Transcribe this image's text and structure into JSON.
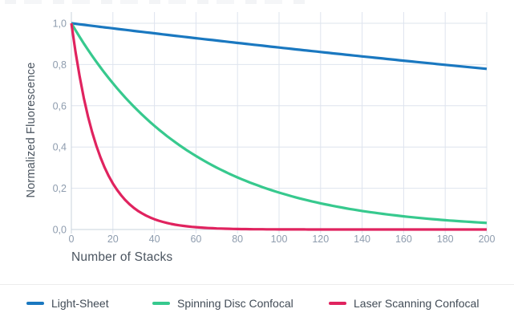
{
  "background_color": "#ffffff",
  "chart_data": {
    "type": "line",
    "title": "",
    "xlabel": "Number of Stacks",
    "ylabel": "Normalized Fluorescence",
    "xlim": [
      0,
      200
    ],
    "ylim": [
      0,
      1.05
    ],
    "grid": true,
    "legend_position": "bottom",
    "decimal_separator": ",",
    "x_ticks": [
      0,
      20,
      40,
      60,
      80,
      100,
      120,
      140,
      160,
      180,
      200
    ],
    "x_tick_labels": [
      "0",
      "20",
      "40",
      "60",
      "80",
      "100",
      "120",
      "140",
      "160",
      "180",
      "200"
    ],
    "y_ticks": [
      1.0,
      0.8,
      0.6,
      0.4,
      0.2,
      0.0
    ],
    "y_tick_labels": [
      "1,0",
      "0,8",
      "0,6",
      "0,4",
      "0,2",
      "0,0"
    ],
    "x": [
      0,
      10,
      20,
      30,
      40,
      50,
      60,
      70,
      80,
      90,
      100,
      110,
      120,
      130,
      140,
      150,
      160,
      170,
      180,
      190,
      200
    ],
    "series": [
      {
        "name": "Light-Sheet",
        "color": "#1a78c0",
        "model": "exponential_decay",
        "decay_per_stack": 0.00125,
        "values": [
          1.0,
          0.988,
          0.975,
          0.963,
          0.951,
          0.939,
          0.928,
          0.916,
          0.905,
          0.894,
          0.882,
          0.872,
          0.861,
          0.85,
          0.839,
          0.829,
          0.819,
          0.808,
          0.798,
          0.789,
          0.779
        ]
      },
      {
        "name": "Spinning Disc Confocal",
        "color": "#37c98e",
        "model": "exponential_decay",
        "decay_per_stack": 0.0172,
        "values": [
          1.0,
          0.842,
          0.709,
          0.597,
          0.503,
          0.423,
          0.356,
          0.3,
          0.253,
          0.213,
          0.179,
          0.151,
          0.127,
          0.107,
          0.09,
          0.076,
          0.064,
          0.054,
          0.045,
          0.038,
          0.032
        ]
      },
      {
        "name": "Laser Scanning Confocal",
        "color": "#e0235f",
        "model": "exponential_decay",
        "decay_per_stack": 0.075,
        "values": [
          1.0,
          0.472,
          0.223,
          0.105,
          0.05,
          0.024,
          0.011,
          0.005,
          0.002,
          0.001,
          0.001,
          0.0,
          0.0,
          0.0,
          0.0,
          0.0,
          0.0,
          0.0,
          0.0,
          0.0,
          0.0
        ]
      }
    ]
  },
  "legend": {
    "items": [
      {
        "label": "Light-Sheet",
        "color": "#1a78c0"
      },
      {
        "label": "Spinning Disc Confocal",
        "color": "#37c98e"
      },
      {
        "label": "Laser Scanning Confocal",
        "color": "#e0235f"
      }
    ]
  },
  "style_colors": {
    "gridline": "#dee4ee",
    "axis_line": "#c9d3de",
    "tick_label": "#8e9cae",
    "axis_title": "#4b5560",
    "legend_text": "#414b56",
    "divider": "#ededed"
  }
}
